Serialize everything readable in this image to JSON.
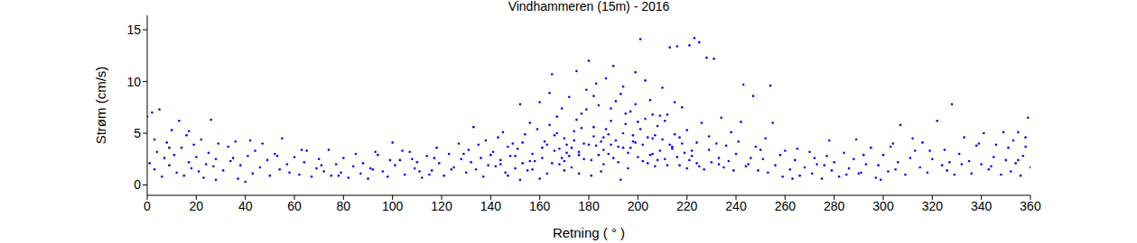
{
  "chart_data": {
    "type": "scatter",
    "title": "Vindhammeren (15m) - 2016",
    "x_label": "Retning ( ° )",
    "y_label": "Strøm (cm/s)",
    "color": "#0000ff",
    "marker": "point",
    "grid": false,
    "xlim": [
      0,
      360
    ],
    "xticks": [
      0,
      20,
      40,
      60,
      80,
      100,
      120,
      140,
      160,
      180,
      200,
      220,
      240,
      260,
      280,
      300,
      320,
      340,
      360
    ],
    "ylim": [
      -1,
      16.4
    ],
    "yticks": [
      0,
      5,
      10,
      15
    ],
    "x": [
      0,
      1,
      2,
      3,
      4,
      5,
      6,
      7,
      8,
      9,
      10,
      11,
      12,
      13,
      14,
      15,
      16,
      17,
      18,
      19,
      20,
      21,
      22,
      23,
      24,
      25,
      26,
      27,
      28,
      29,
      31,
      33,
      34,
      36,
      37,
      38,
      40,
      41,
      43,
      44,
      46,
      47,
      49,
      50,
      52,
      54,
      55,
      57,
      58,
      60,
      62,
      64,
      65,
      67,
      69,
      70,
      72,
      74,
      75,
      77,
      79,
      80,
      82,
      84,
      85,
      87,
      88,
      90,
      92,
      94,
      96,
      98,
      100,
      101,
      103,
      105,
      107,
      109,
      110,
      112,
      114,
      116,
      118,
      119,
      121,
      123,
      125,
      127,
      128,
      130,
      131,
      132,
      133,
      134,
      135,
      136,
      137,
      138,
      139,
      140,
      141,
      142,
      143,
      144,
      145,
      146,
      147,
      148,
      149,
      150,
      151,
      152,
      153,
      154,
      155,
      156,
      157,
      158,
      159,
      160,
      161,
      162,
      163,
      164,
      165,
      166,
      167,
      168,
      169,
      170,
      171,
      172,
      173,
      174,
      175,
      176,
      177,
      178,
      179,
      180,
      181,
      182,
      183,
      184,
      185,
      186,
      187,
      188,
      189,
      190,
      191,
      192,
      193,
      194,
      195,
      196,
      197,
      198,
      199,
      200,
      201,
      202,
      203,
      204,
      205,
      206,
      207,
      208,
      209,
      210,
      211,
      212,
      213,
      214,
      215,
      216,
      217,
      218,
      219,
      220,
      221,
      222,
      223,
      224,
      225,
      226,
      227,
      228,
      229,
      230,
      231,
      232,
      233,
      234,
      235,
      236,
      237,
      238,
      239,
      240,
      165,
      168,
      170,
      172,
      174,
      176,
      178,
      180,
      182,
      184,
      186,
      188,
      190,
      192,
      194,
      196,
      198,
      200,
      202,
      204,
      206,
      208,
      210,
      212,
      214,
      216,
      218,
      220,
      222,
      224,
      160,
      163,
      166,
      169,
      173,
      177,
      181,
      185,
      189,
      193,
      197,
      201,
      205,
      209,
      213,
      217,
      221,
      225,
      229,
      233,
      175,
      179,
      183,
      187,
      191,
      195,
      199,
      203,
      207,
      211,
      152,
      156,
      164,
      171,
      182,
      189,
      194,
      199,
      206,
      215,
      244,
      243,
      246,
      247,
      250,
      253,
      254,
      241,
      242,
      245,
      248,
      249,
      251,
      252,
      255,
      256,
      258,
      259,
      260,
      262,
      144,
      147,
      150,
      153,
      157,
      161,
      167,
      170,
      176,
      186,
      264,
      266,
      268,
      270,
      271,
      273,
      275,
      277,
      279,
      280,
      282,
      284,
      286,
      288,
      289,
      291,
      293,
      295,
      297,
      298,
      300,
      302,
      304,
      306,
      307,
      309,
      311,
      313,
      315,
      316,
      318,
      320,
      322,
      324,
      325,
      327,
      328,
      329,
      331,
      333,
      335,
      336,
      338,
      340,
      341,
      343,
      345,
      346,
      348,
      350,
      351,
      352,
      353,
      354,
      355,
      356,
      357,
      358,
      359,
      360,
      265,
      272,
      278,
      285,
      292,
      299,
      305,
      312,
      319,
      326,
      332,
      339,
      344,
      349,
      355,
      358,
      263,
      276,
      290,
      303,
      3,
      9,
      17,
      28,
      35,
      42,
      53,
      63,
      78,
      91,
      99,
      104,
      111,
      117,
      124,
      129,
      115,
      108,
      93,
      71
    ],
    "values": [
      6.6,
      2.1,
      7.0,
      1.5,
      3.2,
      7.3,
      0.8,
      2.6,
      4.1,
      1.9,
      5.3,
      2.9,
      1.2,
      6.2,
      3.6,
      0.9,
      4.8,
      2.2,
      1.6,
      3.9,
      2.7,
      1.3,
      4.4,
      0.7,
      2.0,
      3.1,
      6.3,
      1.8,
      2.5,
      4.0,
      1.4,
      3.7,
      2.3,
      4.2,
      0.6,
      1.9,
      0.3,
      2.8,
      1.1,
      3.3,
      1.7,
      4.0,
      2.4,
      0.9,
      3.0,
      1.5,
      4.5,
      2.0,
      1.2,
      2.7,
      1.0,
      2.2,
      3.3,
      0.8,
      1.6,
      2.5,
      1.3,
      3.4,
      0.9,
      2.0,
      1.2,
      2.6,
      0.7,
      1.8,
      3.0,
      1.1,
      2.1,
      0.6,
      1.5,
      2.9,
      1.3,
      0.8,
      4.1,
      1.9,
      2.4,
      1.0,
      3.2,
      1.6,
      2.2,
      0.7,
      2.8,
      1.4,
      3.6,
      2.1,
      0.9,
      3.0,
      1.7,
      4.0,
      2.5,
      1.2,
      3.4,
      2.2,
      5.6,
      1.5,
      3.9,
      2.6,
      0.8,
      4.3,
      1.9,
      2.9,
      3.2,
      1.8,
      4.6,
      2.4,
      5.1,
      1.2,
      3.7,
      2.8,
      4.0,
      1.6,
      3.5,
      7.8,
      2.1,
      4.9,
      1.4,
      6.0,
      3.0,
      2.3,
      5.4,
      8.0,
      2.6,
      4.2,
      1.1,
      5.8,
      10.7,
      3.3,
      6.6,
      2.0,
      7.4,
      4.5,
      3.1,
      8.5,
      1.7,
      5.2,
      11.0,
      2.9,
      6.9,
      4.0,
      9.2,
      12.0,
      2.4,
      5.6,
      3.8,
      7.7,
      1.3,
      4.6,
      10.3,
      3.0,
      6.2,
      11.5,
      4.3,
      2.2,
      8.8,
      3.6,
      5.9,
      1.6,
      7.1,
      4.8,
      10.9,
      2.7,
      14.1,
      3.9,
      6.4,
      2.1,
      8.2,
      4.5,
      1.8,
      5.7,
      3.3,
      9.4,
      2.5,
      6.8,
      13.3,
      3.7,
      4.9,
      13.4,
      1.9,
      7.5,
      3.1,
      5.3,
      13.5,
      2.8,
      14.2,
      4.1,
      13.8,
      6.0,
      1.5,
      12.3,
      3.4,
      2.2,
      12.2,
      4.0,
      2.6,
      6.5,
      1.7,
      3.8,
      2.3,
      5.1,
      1.4,
      3.0,
      2.1,
      3.5,
      1.4,
      2.8,
      4.3,
      3.2,
      2.5,
      3.9,
      4.7,
      2.9,
      3.4,
      4.9,
      2.6,
      3.7,
      5.0,
      3.1,
      4.2,
      6.1,
      2.3,
      4.6,
      3.0,
      2.4,
      4.4,
      1.9,
      3.5,
      2.7,
      4.0,
      1.6,
      3.3,
      2.1,
      0.6,
      3.9,
      4.8,
      2.6,
      3.6,
      5.5,
      0.9,
      4.2,
      3.9,
      0.5,
      3.6,
      5.4,
      2.9,
      6.7,
      3.9,
      4.6,
      2.4,
      1.8,
      4.7,
      2.0,
      6.3,
      7.3,
      9.8,
      5.4,
      8.1,
      6.9,
      7.8,
      10.1,
      4.8,
      6.2,
      0.5,
      2.3,
      8.9,
      3.9,
      8.6,
      7.4,
      9.5,
      4.1,
      6.8,
      8.0,
      1.8,
      9.7,
      2.6,
      8.6,
      3.4,
      1.2,
      9.6,
      4.2,
      6.1,
      2.0,
      3.7,
      1.4,
      2.5,
      4.5,
      6.0,
      1.9,
      2.9,
      0.8,
      3.3,
      1.5,
      2.0,
      0.9,
      2.8,
      4.1,
      1.5,
      3.6,
      5.0,
      2.3,
      1.1,
      2.0,
      2.4,
      0.9,
      1.7,
      3.2,
      1.1,
      2.0,
      0.6,
      2.8,
      1.4,
      2.2,
      0.8,
      3.1,
      1.6,
      2.5,
      4.4,
      1.2,
      2.0,
      3.6,
      0.7,
      1.9,
      2.9,
      1.3,
      4.0,
      2.2,
      5.8,
      1.0,
      2.6,
      3.3,
      1.7,
      4.1,
      1.2,
      2.5,
      6.2,
      1.9,
      3.4,
      2.2,
      7.8,
      1.0,
      3.0,
      4.6,
      2.3,
      1.1,
      3.8,
      2.0,
      5.0,
      1.5,
      2.7,
      3.9,
      1.0,
      2.4,
      3.6,
      1.3,
      4.3,
      2.1,
      5.1,
      0.9,
      2.8,
      3.7,
      6.5,
      1.7,
      3.5,
      2.6,
      4.3,
      1.0,
      2.9,
      0.5,
      1.5,
      4.5,
      3.3,
      1.4,
      2.0,
      4.0,
      1.8,
      5.1,
      2.4,
      4.6,
      0.6,
      1.9,
      1.1,
      3.7,
      4.4,
      3.6,
      5.2,
      0.5,
      2.6,
      4.3,
      2.8,
      3.4,
      0.9,
      1.6,
      2.4,
      3.3,
      1.3,
      2.6,
      1.5,
      3.0,
      1.0,
      2.5,
      3.2,
      1.9
    ]
  }
}
